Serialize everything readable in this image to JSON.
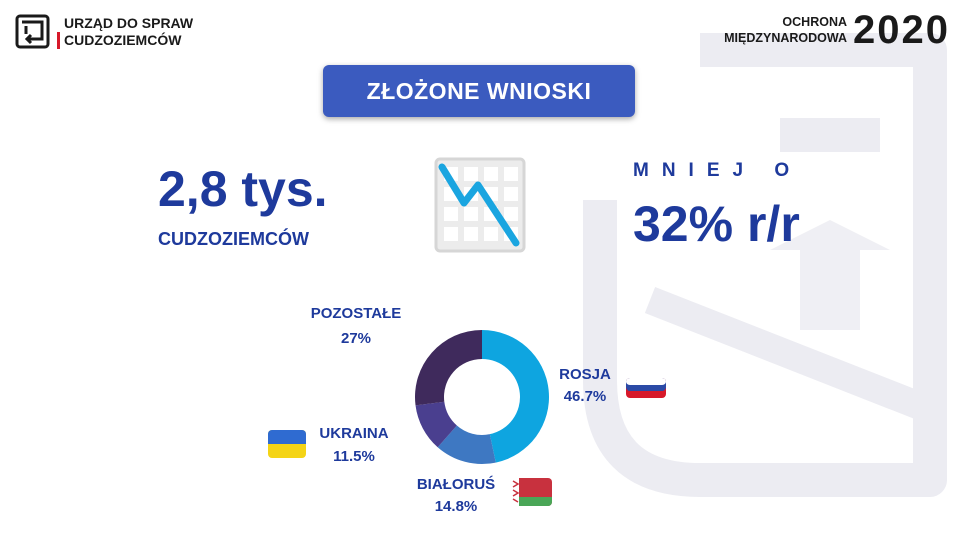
{
  "header": {
    "org_line1": "URZĄD DO SPRAW",
    "org_line2": "CUDZOZIEMCÓW",
    "topic_line1": "OCHRONA",
    "topic_line2": "MIĘDZYNARODOWA",
    "year": "2020"
  },
  "title": "ZŁOŻONE WNIOSKI",
  "stat": {
    "value": "2,8 tys.",
    "label": "CUDZOZIEMCÓW"
  },
  "delta": {
    "label": "MNIEJ O",
    "value": "32% r/r"
  },
  "icons": {
    "logo": "office-logo-icon",
    "trend": "chart-down-icon"
  },
  "colors": {
    "accent": "#3b5bbf",
    "text": "#1e3a9c",
    "red": "#d7192a"
  },
  "chart_data": {
    "type": "pie",
    "categories": [
      "ROSJA",
      "BIAŁORUŚ",
      "UKRAINA",
      "POZOSTAŁE"
    ],
    "values": [
      46.7,
      14.8,
      11.5,
      27
    ],
    "value_labels": [
      "46.7%",
      "14.8%",
      "11.5%",
      "27%"
    ],
    "colors": [
      "#0ea5e0",
      "#3e78c2",
      "#4a3f8f",
      "#3f2a5c"
    ],
    "donut": true
  }
}
